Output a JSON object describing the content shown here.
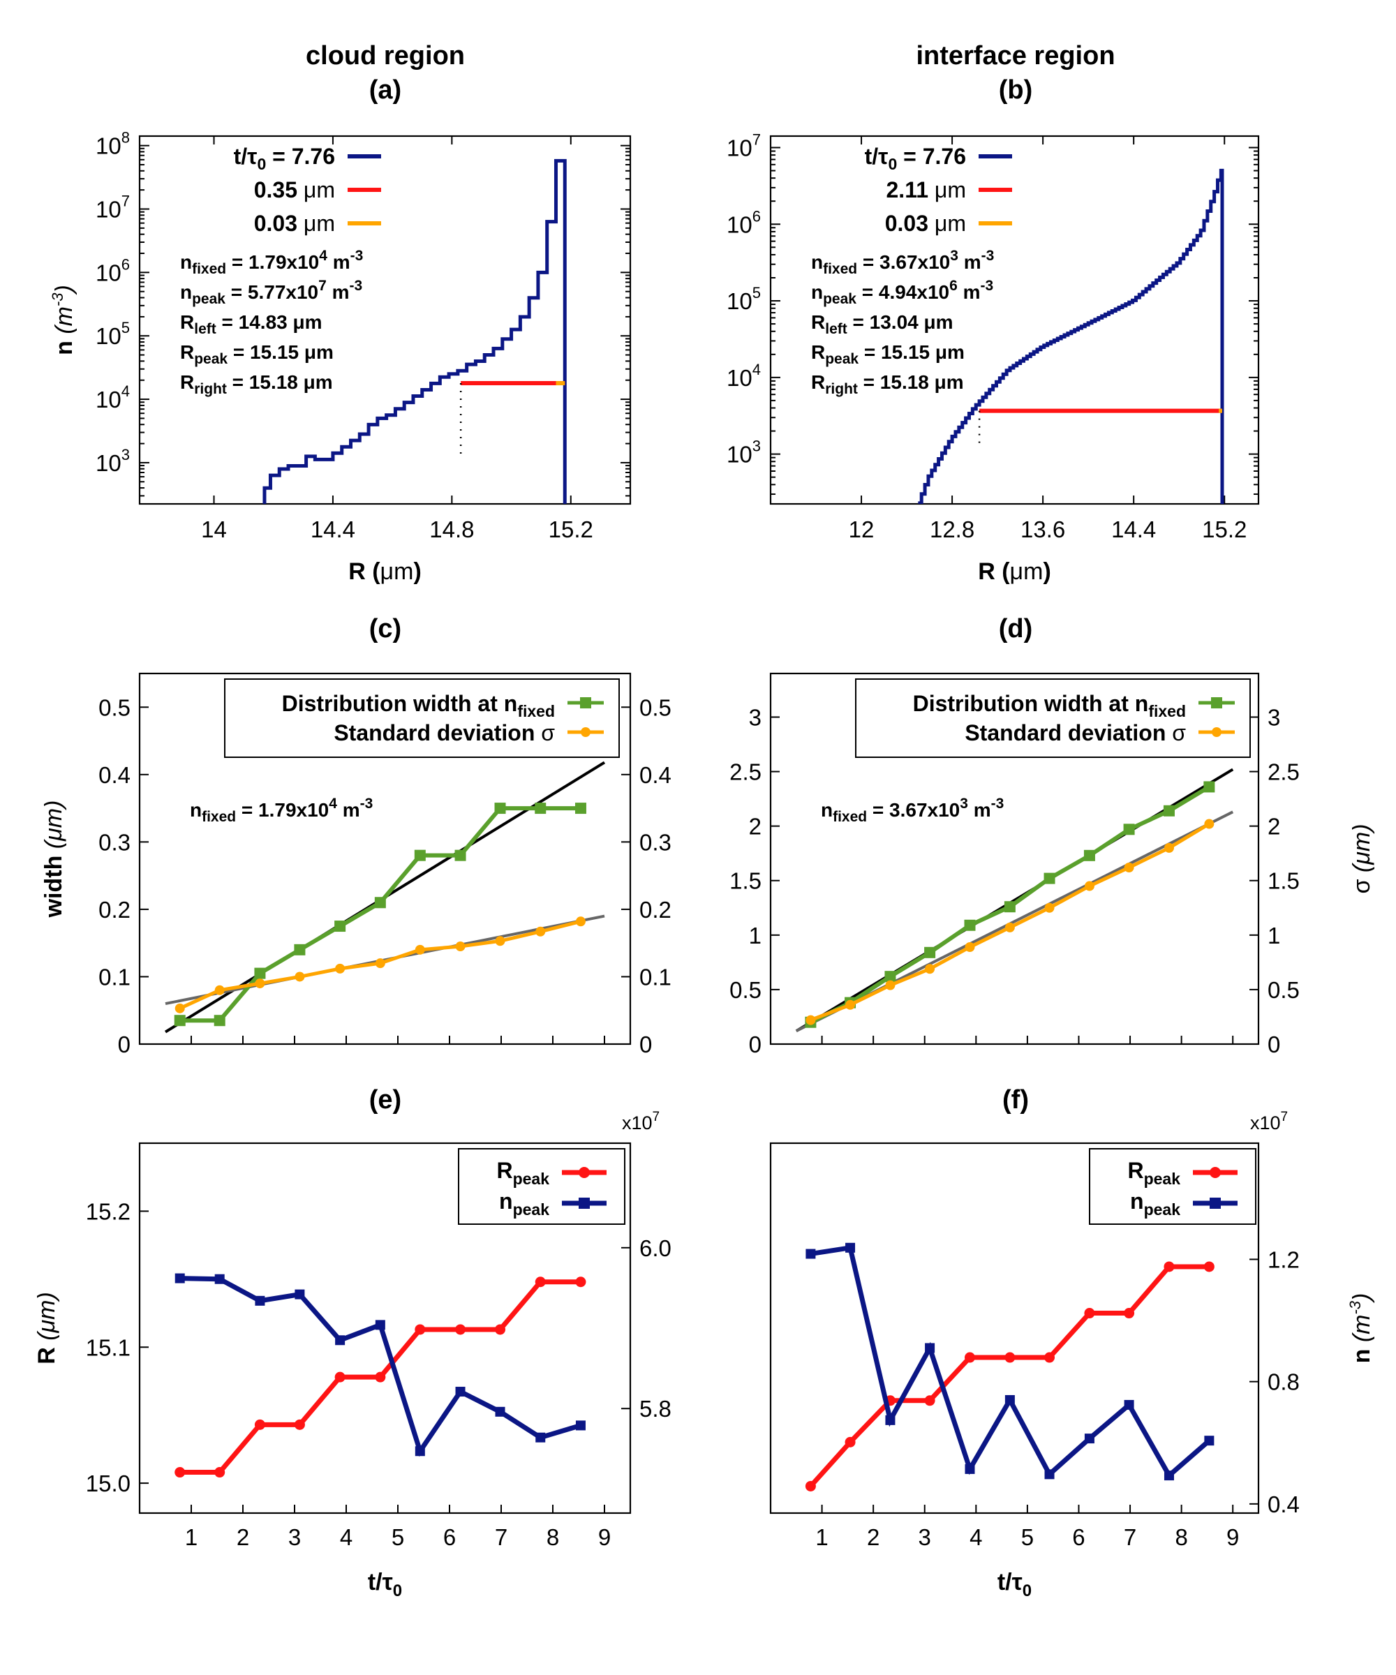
{
  "headings": {
    "left": "cloud region",
    "right": "interface region",
    "a": "(a)",
    "b": "(b)",
    "c": "(c)",
    "d": "(d)",
    "e": "(e)",
    "f": "(f)"
  },
  "colors": {
    "navy": "#0b1685",
    "red": "#ff1414",
    "orange": "#ffa500",
    "green": "#5aa02c",
    "fit_black": "#000000",
    "fit_grey": "#666666"
  },
  "multiplier": {
    "base": "x10",
    "exp": "7"
  },
  "chart_data": [
    {
      "id": "a",
      "type": "line",
      "subtype": "histogram-step",
      "xlabel": "R (μm)",
      "ylabel": "n (m-3)",
      "xlim": [
        13.75,
        15.4
      ],
      "ylim_log10": [
        2.35,
        8.15
      ],
      "xticks": [
        14,
        14.4,
        14.8,
        15.2
      ],
      "xtick_labels": [
        "14",
        "14.4",
        "14.8",
        "15.2"
      ],
      "yticks_exp": [
        3,
        4,
        5,
        6,
        7,
        8
      ],
      "legend": [
        {
          "label": "t/τ0 = 7.76",
          "color": "#0b1685"
        },
        {
          "label": "0.35 μm",
          "color": "#ff1414"
        },
        {
          "label": "0.03 μm",
          "color": "#ffa500"
        }
      ],
      "annotations": [
        {
          "sym": "n",
          "sub": "fixed",
          "text": " = 1.79x10",
          "sup": "4",
          "tail": " m",
          "tail_sup": "-3"
        },
        {
          "sym": "n",
          "sub": "peak",
          "text": " = 5.77x10",
          "sup": "7",
          "tail": " m",
          "tail_sup": "-3"
        },
        {
          "sym": "R",
          "sub": "left",
          "text": " = 14.83 μm",
          "sup": "",
          "tail": "",
          "tail_sup": ""
        },
        {
          "sym": "R",
          "sub": "peak",
          "text": " = 15.15 μm",
          "sup": "",
          "tail": "",
          "tail_sup": ""
        },
        {
          "sym": "R",
          "sub": "right",
          "text": " = 15.18 μm",
          "sup": "",
          "tail": "",
          "tail_sup": ""
        }
      ],
      "series": [
        {
          "name": "t/τ0 = 7.76",
          "x": [
            14.09,
            14.17,
            14.19,
            14.22,
            14.25,
            14.28,
            14.31,
            14.34,
            14.37,
            14.4,
            14.43,
            14.46,
            14.49,
            14.52,
            14.55,
            14.58,
            14.61,
            14.64,
            14.67,
            14.7,
            14.73,
            14.76,
            14.79,
            14.82,
            14.85,
            14.88,
            14.91,
            14.94,
            14.97,
            15.0,
            15.03,
            15.06,
            15.09,
            15.12,
            15.15,
            15.18
          ],
          "log10_n": [
            2.3,
            2.6,
            2.8,
            2.9,
            2.95,
            2.95,
            3.1,
            3.05,
            3.05,
            3.15,
            3.25,
            3.35,
            3.45,
            3.6,
            3.7,
            3.75,
            3.85,
            3.95,
            4.05,
            4.15,
            4.25,
            4.35,
            4.4,
            4.45,
            4.55,
            4.6,
            4.7,
            4.8,
            4.95,
            5.1,
            5.3,
            5.6,
            6.0,
            6.8,
            7.76
          ]
        }
      ],
      "marks": {
        "fixed_level_log10": 4.2533,
        "R_left": 14.83,
        "R_right": 15.18,
        "R_peak": 15.15
      }
    },
    {
      "id": "b",
      "type": "line",
      "subtype": "histogram-step",
      "xlabel": "R (μm)",
      "ylabel": "",
      "xlim": [
        11.2,
        15.5
      ],
      "ylim_log10": [
        2.35,
        7.15
      ],
      "xticks": [
        12,
        12.8,
        13.6,
        14.4,
        15.2
      ],
      "xtick_labels": [
        "12",
        "12.8",
        "13.6",
        "14.4",
        "15.2"
      ],
      "yticks_exp": [
        3,
        4,
        5,
        6,
        7
      ],
      "legend": [
        {
          "label": "t/τ0 = 7.76",
          "color": "#0b1685"
        },
        {
          "label": "2.11 μm",
          "color": "#ff1414"
        },
        {
          "label": "0.03 μm",
          "color": "#ffa500"
        }
      ],
      "annotations": [
        {
          "sym": "n",
          "sub": "fixed",
          "text": " = 3.67x10",
          "sup": "3",
          "tail": " m",
          "tail_sup": "-3"
        },
        {
          "sym": "n",
          "sub": "peak",
          "text": " = 4.94x10",
          "sup": "6",
          "tail": " m",
          "tail_sup": "-3"
        },
        {
          "sym": "R",
          "sub": "left",
          "text": " = 13.04 μm",
          "sup": "",
          "tail": "",
          "tail_sup": ""
        },
        {
          "sym": "R",
          "sub": "peak",
          "text": " = 15.15 μm",
          "sup": "",
          "tail": "",
          "tail_sup": ""
        },
        {
          "sym": "R",
          "sub": "right",
          "text": " = 15.18 μm",
          "sup": "",
          "tail": "",
          "tail_sup": ""
        }
      ],
      "series": [
        {
          "name": "t/τ0 = 7.76",
          "anchors_R": [
            12.5,
            12.6,
            12.8,
            13.0,
            13.3,
            13.6,
            14.0,
            14.4,
            14.8,
            15.0,
            15.12,
            15.18
          ],
          "anchors_log10_n": [
            2.3,
            2.7,
            3.2,
            3.6,
            4.1,
            4.4,
            4.7,
            5.0,
            5.5,
            5.9,
            6.4,
            6.7
          ],
          "step_width": 0.03
        }
      ],
      "marks": {
        "fixed_level_log10": 3.5647,
        "R_left": 13.04,
        "R_right": 15.18,
        "R_peak": 15.15
      }
    },
    {
      "id": "c",
      "type": "line",
      "xlabel": "",
      "ylabel": "width (μm)",
      "xlim": [
        0,
        9.5
      ],
      "ylim": [
        0,
        0.55
      ],
      "yticks": [
        0,
        0.1,
        0.2,
        0.3,
        0.4,
        0.5
      ],
      "ytick_labels": [
        "0",
        "0.1",
        "0.2",
        "0.3",
        "0.4",
        "0.5"
      ],
      "right_ytick_labels": [
        "0",
        "0.1",
        "0.2",
        "0.3",
        "0.4",
        "0.5"
      ],
      "legend": [
        {
          "label": "Distribution width at n",
          "sub": "fixed",
          "color": "#5aa02c"
        },
        {
          "label": "Standard deviation σ",
          "sub": "",
          "color": "#ffa500"
        }
      ],
      "annotation": {
        "sym": "n",
        "sub": "fixed",
        "text": " = 1.79x10",
        "sup": "4",
        "tail": " m",
        "tail_sup": "-3"
      },
      "x": [
        0.78,
        1.55,
        2.33,
        3.1,
        3.88,
        4.66,
        5.43,
        6.21,
        6.98,
        7.76,
        8.54
      ],
      "series": [
        {
          "name": "Distribution width",
          "values": [
            0.035,
            0.035,
            0.105,
            0.14,
            0.175,
            0.21,
            0.28,
            0.28,
            0.35,
            0.35,
            0.35
          ]
        },
        {
          "name": "Standard deviation σ",
          "values": [
            0.053,
            0.08,
            0.09,
            0.1,
            0.112,
            0.12,
            0.14,
            0.145,
            0.153,
            0.167,
            0.182
          ]
        }
      ],
      "fits": [
        {
          "name": "width fit",
          "x": [
            0.5,
            9.0
          ],
          "y": [
            0.018,
            0.418
          ]
        },
        {
          "name": "σ fit",
          "x": [
            0.5,
            9.0
          ],
          "y": [
            0.06,
            0.19
          ]
        }
      ]
    },
    {
      "id": "d",
      "type": "line",
      "xlabel": "",
      "ylabel": "σ (μm)",
      "xlim": [
        0,
        9.5
      ],
      "ylim": [
        0,
        3.4
      ],
      "yticks": [
        0,
        0.5,
        1,
        1.5,
        2,
        2.5,
        3
      ],
      "ytick_labels": [
        "0",
        "0.5",
        "1",
        "1.5",
        "2",
        "2.5",
        "3"
      ],
      "right_ytick_labels": [
        "0",
        "0.5",
        "1",
        "1.5",
        "2",
        "2.5",
        "3"
      ],
      "legend": [
        {
          "label": "Distribution width at n",
          "sub": "fixed",
          "color": "#5aa02c"
        },
        {
          "label": "Standard deviation σ",
          "sub": "",
          "color": "#ffa500"
        }
      ],
      "annotation": {
        "sym": "n",
        "sub": "fixed",
        "text": " = 3.67x10",
        "sup": "3",
        "tail": " m",
        "tail_sup": "-3"
      },
      "x": [
        0.78,
        1.55,
        2.33,
        3.1,
        3.88,
        4.66,
        5.43,
        6.21,
        6.98,
        7.76,
        8.54
      ],
      "series": [
        {
          "name": "Distribution width",
          "values": [
            0.2,
            0.38,
            0.62,
            0.84,
            1.09,
            1.26,
            1.52,
            1.73,
            1.97,
            2.14,
            2.36
          ]
        },
        {
          "name": "Standard deviation σ",
          "values": [
            0.22,
            0.36,
            0.54,
            0.69,
            0.89,
            1.07,
            1.25,
            1.45,
            1.62,
            1.8,
            2.02
          ]
        }
      ],
      "fits": [
        {
          "name": "width fit",
          "x": [
            0.5,
            9.0
          ],
          "y": [
            0.12,
            2.52
          ]
        },
        {
          "name": "σ fit",
          "x": [
            0.5,
            9.0
          ],
          "y": [
            0.12,
            2.13
          ]
        }
      ]
    },
    {
      "id": "e",
      "type": "line",
      "xlabel": "t/τ0",
      "ylabel": "R (μm)",
      "xlim": [
        0,
        9.5
      ],
      "xticks": [
        1,
        2,
        3,
        4,
        5,
        6,
        7,
        8,
        9
      ],
      "ylim": [
        14.978,
        15.25
      ],
      "yticks": [
        15.0,
        15.1,
        15.2
      ],
      "ytick_labels": [
        "15.0",
        "15.1",
        "15.2"
      ],
      "right_ylim": [
        56700000,
        61300000
      ],
      "right_yticks": [
        58000000,
        60000000
      ],
      "right_ytick_labels": [
        "5.8",
        "6.0"
      ],
      "legend": [
        {
          "label": "R",
          "sub": "peak",
          "color": "#ff1414"
        },
        {
          "label": "n",
          "sub": "peak",
          "color": "#0b1685"
        }
      ],
      "x": [
        0.78,
        1.55,
        2.33,
        3.1,
        3.88,
        4.66,
        5.43,
        6.21,
        6.98,
        7.76,
        8.54
      ],
      "series": [
        {
          "name": "Rpeak",
          "axis": "left",
          "values": [
            15.008,
            15.008,
            15.043,
            15.043,
            15.078,
            15.078,
            15.113,
            15.113,
            15.113,
            15.148,
            15.148
          ]
        },
        {
          "name": "npeak",
          "axis": "right",
          "values": [
            59620000,
            59610000,
            59340000,
            59420000,
            58850000,
            59040000,
            57470000,
            58210000,
            57960000,
            57640000,
            57790000
          ]
        }
      ]
    },
    {
      "id": "f",
      "type": "line",
      "xlabel": "t/τ0",
      "ylabel": "n (m-3)",
      "xlim": [
        0,
        9.5
      ],
      "xticks": [
        1,
        2,
        3,
        4,
        5,
        6,
        7,
        8,
        9
      ],
      "ylim": [
        12.9,
        15.3
      ],
      "ylim_note": "left axis has no labels",
      "right_ylim": [
        3700000,
        15800000
      ],
      "right_yticks": [
        4000000,
        8000000,
        12000000
      ],
      "right_ytick_labels": [
        "0.4",
        "0.8",
        "1.2"
      ],
      "legend": [
        {
          "label": "R",
          "sub": "peak",
          "color": "#ff1414"
        },
        {
          "label": "n",
          "sub": "peak",
          "color": "#0b1685"
        }
      ],
      "x": [
        0.78,
        1.55,
        2.33,
        3.1,
        3.88,
        4.66,
        5.43,
        6.21,
        6.98,
        7.76,
        8.54
      ],
      "series": [
        {
          "name": "Rpeak",
          "axis": "right",
          "values": [
            4580000,
            6020000,
            7380000,
            7380000,
            8790000,
            8790000,
            8790000,
            10240000,
            10240000,
            11760000,
            11760000
          ]
        },
        {
          "name": "npeak",
          "axis": "right",
          "values": [
            12180000,
            12380000,
            6740000,
            9100000,
            5140000,
            7400000,
            4970000,
            6140000,
            7240000,
            4930000,
            6070000
          ]
        }
      ]
    }
  ]
}
